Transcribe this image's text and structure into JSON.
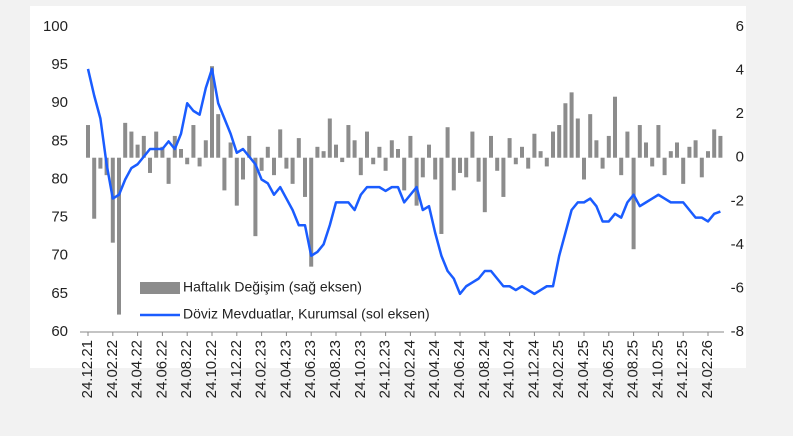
{
  "chart_data": {
    "type": "bar_line",
    "categories": [
      "24.12.21",
      null,
      null,
      null,
      "24.02.22",
      null,
      null,
      null,
      "24.04.22",
      null,
      null,
      null,
      "24.06.22",
      null,
      null,
      null,
      "24.08.22",
      null,
      null,
      null,
      "24.10.22",
      null,
      null,
      null,
      "24.12.22",
      null,
      null,
      null,
      "24.02.23",
      null,
      null,
      null,
      "24.04.23",
      null,
      null,
      null,
      "24.06.23",
      null,
      null,
      null,
      "24.08.23",
      null,
      null,
      null,
      "24.10.23",
      null,
      null,
      null,
      "24.12.23",
      null,
      null,
      null,
      "24.02.24",
      null,
      null,
      null,
      "24.04.24",
      null,
      null,
      null,
      "24.06.24",
      null,
      null,
      null,
      "24.08.24",
      null,
      null,
      null,
      "24.10.24",
      null,
      null,
      null,
      "24.12.24",
      null,
      null,
      null,
      "24.02.25",
      null,
      null,
      null,
      "24.04.25",
      null,
      null,
      null,
      "24.06.25",
      null,
      null,
      null,
      "24.08.25",
      null,
      null,
      null,
      "24.10.25",
      null,
      null,
      null,
      "24.12.25",
      null,
      null,
      null,
      "24.02.26",
      null,
      null
    ],
    "series": [
      {
        "name": "Haftalık Değişim (sağ eksen)",
        "type": "bar",
        "axis": "y2",
        "color": "#8c8c8c",
        "values": [
          1.5,
          -2.8,
          -0.5,
          -0.8,
          -3.9,
          -7.2,
          1.6,
          1.2,
          0.6,
          1.0,
          -0.7,
          1.2,
          0.5,
          -1.2,
          1.0,
          0.4,
          -0.3,
          1.5,
          -0.4,
          0.8,
          4.2,
          2.0,
          -1.5,
          0.7,
          -2.2,
          -1.0,
          1.0,
          -3.6,
          -0.6,
          0.5,
          -0.8,
          1.3,
          -0.5,
          -1.2,
          0.9,
          -1.8,
          -5.0,
          0.5,
          0.3,
          1.8,
          0.6,
          -0.2,
          1.5,
          0.8,
          -0.8,
          1.2,
          -0.3,
          0.5,
          -0.6,
          0.8,
          0.4,
          -1.5,
          1.0,
          -2.2,
          -0.9,
          0.6,
          -1.0,
          -3.5,
          1.4,
          -1.5,
          -0.7,
          -0.9,
          1.2,
          -1.1,
          -2.5,
          1.0,
          -0.6,
          -1.8,
          0.9,
          -0.3,
          0.5,
          -0.5,
          1.1,
          0.3,
          -0.4,
          1.2,
          1.5,
          2.5,
          3.0,
          1.8,
          -1.0,
          2.0,
          0.8,
          -0.5,
          1.0,
          2.8,
          -0.8,
          1.2,
          -4.2,
          1.5,
          0.7,
          -0.4,
          1.5,
          -0.8,
          0.3,
          0.7,
          -1.2,
          0.5,
          0.8,
          -0.9,
          0.3,
          1.3,
          1.0
        ]
      },
      {
        "name": "Döviz Mevduatlar, Kurumsal (sol eksen)",
        "type": "line",
        "axis": "y",
        "color": "#1a5cff",
        "values": [
          94.5,
          91,
          88,
          82,
          77.5,
          78,
          80,
          81.5,
          82,
          83,
          84,
          84,
          84,
          85,
          84,
          86,
          90,
          89,
          88.5,
          92,
          94.5,
          90,
          88,
          86,
          83.5,
          84,
          83,
          82,
          80,
          79.5,
          78,
          79,
          77.5,
          76,
          74,
          74,
          70,
          70.5,
          71.5,
          74,
          77,
          77,
          77,
          76,
          78,
          79,
          79,
          79,
          78.5,
          79,
          79,
          77,
          78,
          79,
          76,
          76.5,
          73,
          70,
          68,
          67,
          65,
          66,
          66.5,
          67,
          68,
          68,
          67,
          66,
          66,
          65.5,
          66,
          65.5,
          65,
          65.5,
          66,
          66,
          70,
          73,
          76,
          77,
          77,
          77.5,
          76.5,
          74.5,
          74.5,
          75.5,
          75,
          77,
          78,
          76.5,
          77,
          77.5,
          78,
          77.5,
          77,
          77,
          77,
          76,
          75,
          75,
          74.5,
          75.5,
          75.8
        ]
      }
    ],
    "ylim": [
      60,
      100
    ],
    "yticks": [
      60,
      65,
      70,
      75,
      80,
      85,
      90,
      95,
      100
    ],
    "y2lim": [
      -8,
      6
    ],
    "y2ticks": [
      -8,
      -6,
      -4,
      -2,
      0,
      2,
      4,
      6
    ]
  }
}
